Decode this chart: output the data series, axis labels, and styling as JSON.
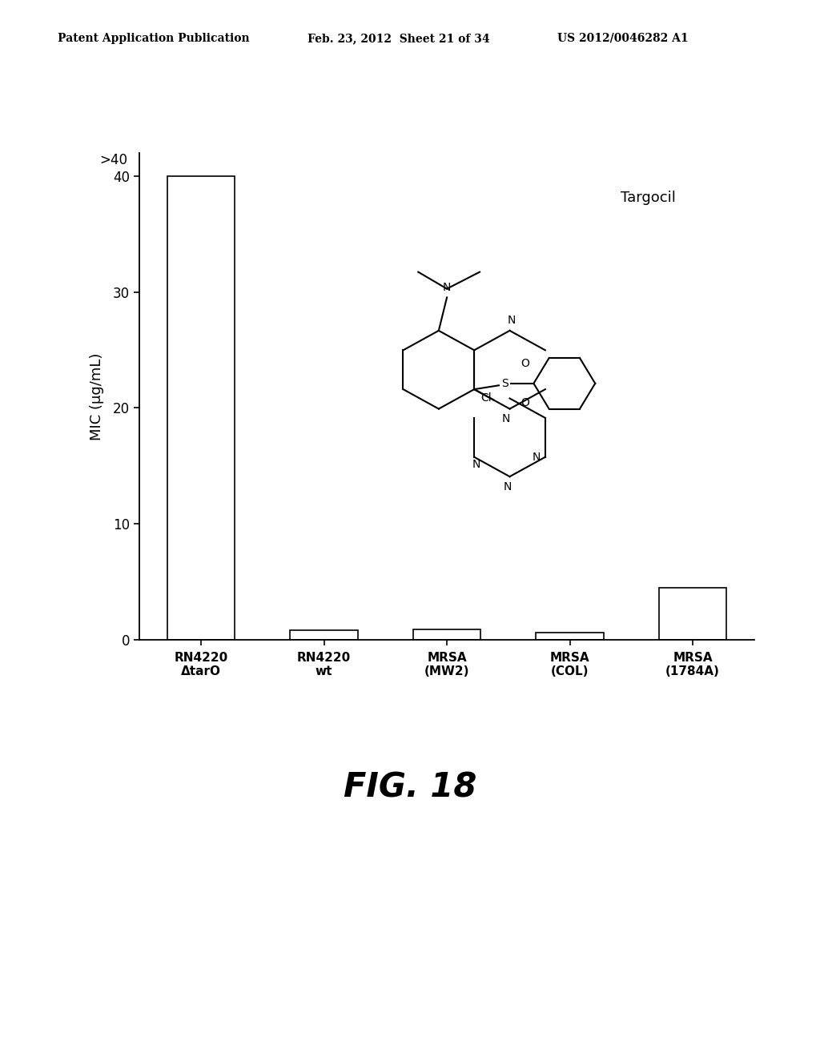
{
  "categories": [
    "RN4220\nΔtarO",
    "RN4220\nwt",
    "MRSA\n(MW2)",
    "MRSA\n(COL)",
    "MRSA\n(1784A)"
  ],
  "values": [
    40,
    0.8,
    0.9,
    0.6,
    4.5
  ],
  "bar_color": "#ffffff",
  "bar_edge_color": "#000000",
  "bar_width": 0.55,
  "ylim": [
    0,
    42
  ],
  "yticks": [
    0,
    10,
    20,
    30,
    40
  ],
  "ylabel": "MIC (μg/mL)",
  "ylabel_fontsize": 13,
  "tick_fontsize": 12,
  "xlabel_fontsize": 11,
  "gt40_label": ">40",
  "gt40_fontsize": 12,
  "fig_title": "FIG. 18",
  "fig_title_fontsize": 30,
  "header_left": "Patent Application Publication",
  "header_center": "Feb. 23, 2012  Sheet 21 of 34",
  "header_right": "US 2012/0046282 A1",
  "header_fontsize": 10,
  "background_color": "#ffffff",
  "molecule_label": "Targocil",
  "molecule_label_fontsize": 13
}
